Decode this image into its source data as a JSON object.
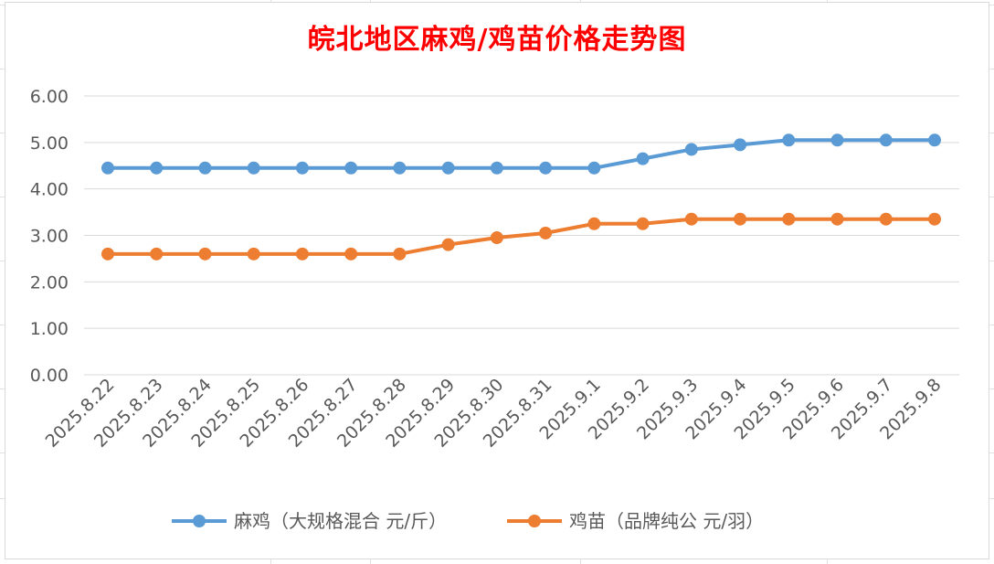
{
  "colors": {
    "title": "#FF0000",
    "series_1": "#5B9BD5",
    "series_2": "#ED7D31",
    "grid": "#D9D9D9",
    "tick_text": "#595959"
  },
  "chart_data": {
    "type": "line",
    "title": "皖北地区麻鸡/鸡苗价格走势图",
    "xlabel": "",
    "ylabel": "",
    "ylim": [
      0,
      6
    ],
    "yticks": [
      "0.00",
      "1.00",
      "2.00",
      "3.00",
      "4.00",
      "5.00",
      "6.00"
    ],
    "grid": true,
    "legend_position": "bottom",
    "categories": [
      "2025.8.22",
      "2025.8.23",
      "2025.8.24",
      "2025.8.25",
      "2025.8.26",
      "2025.8.27",
      "2025.8.28",
      "2025.8.29",
      "2025.8.30",
      "2025.8.31",
      "2025.9.1",
      "2025.9.2",
      "2025.9.3",
      "2025.9.4",
      "2025.9.5",
      "2025.9.6",
      "2025.9.7",
      "2025.9.8"
    ],
    "series": [
      {
        "name": "麻鸡（大规格混合 元/斤）",
        "color": "#5B9BD5",
        "values": [
          4.45,
          4.45,
          4.45,
          4.45,
          4.45,
          4.45,
          4.45,
          4.45,
          4.45,
          4.45,
          4.45,
          4.65,
          4.85,
          4.95,
          5.05,
          5.05,
          5.05,
          5.05
        ]
      },
      {
        "name": "鸡苗（品牌纯公 元/羽）",
        "color": "#ED7D31",
        "values": [
          2.6,
          2.6,
          2.6,
          2.6,
          2.6,
          2.6,
          2.6,
          2.8,
          2.95,
          3.05,
          3.25,
          3.25,
          3.35,
          3.35,
          3.35,
          3.35,
          3.35,
          3.35
        ]
      }
    ]
  }
}
